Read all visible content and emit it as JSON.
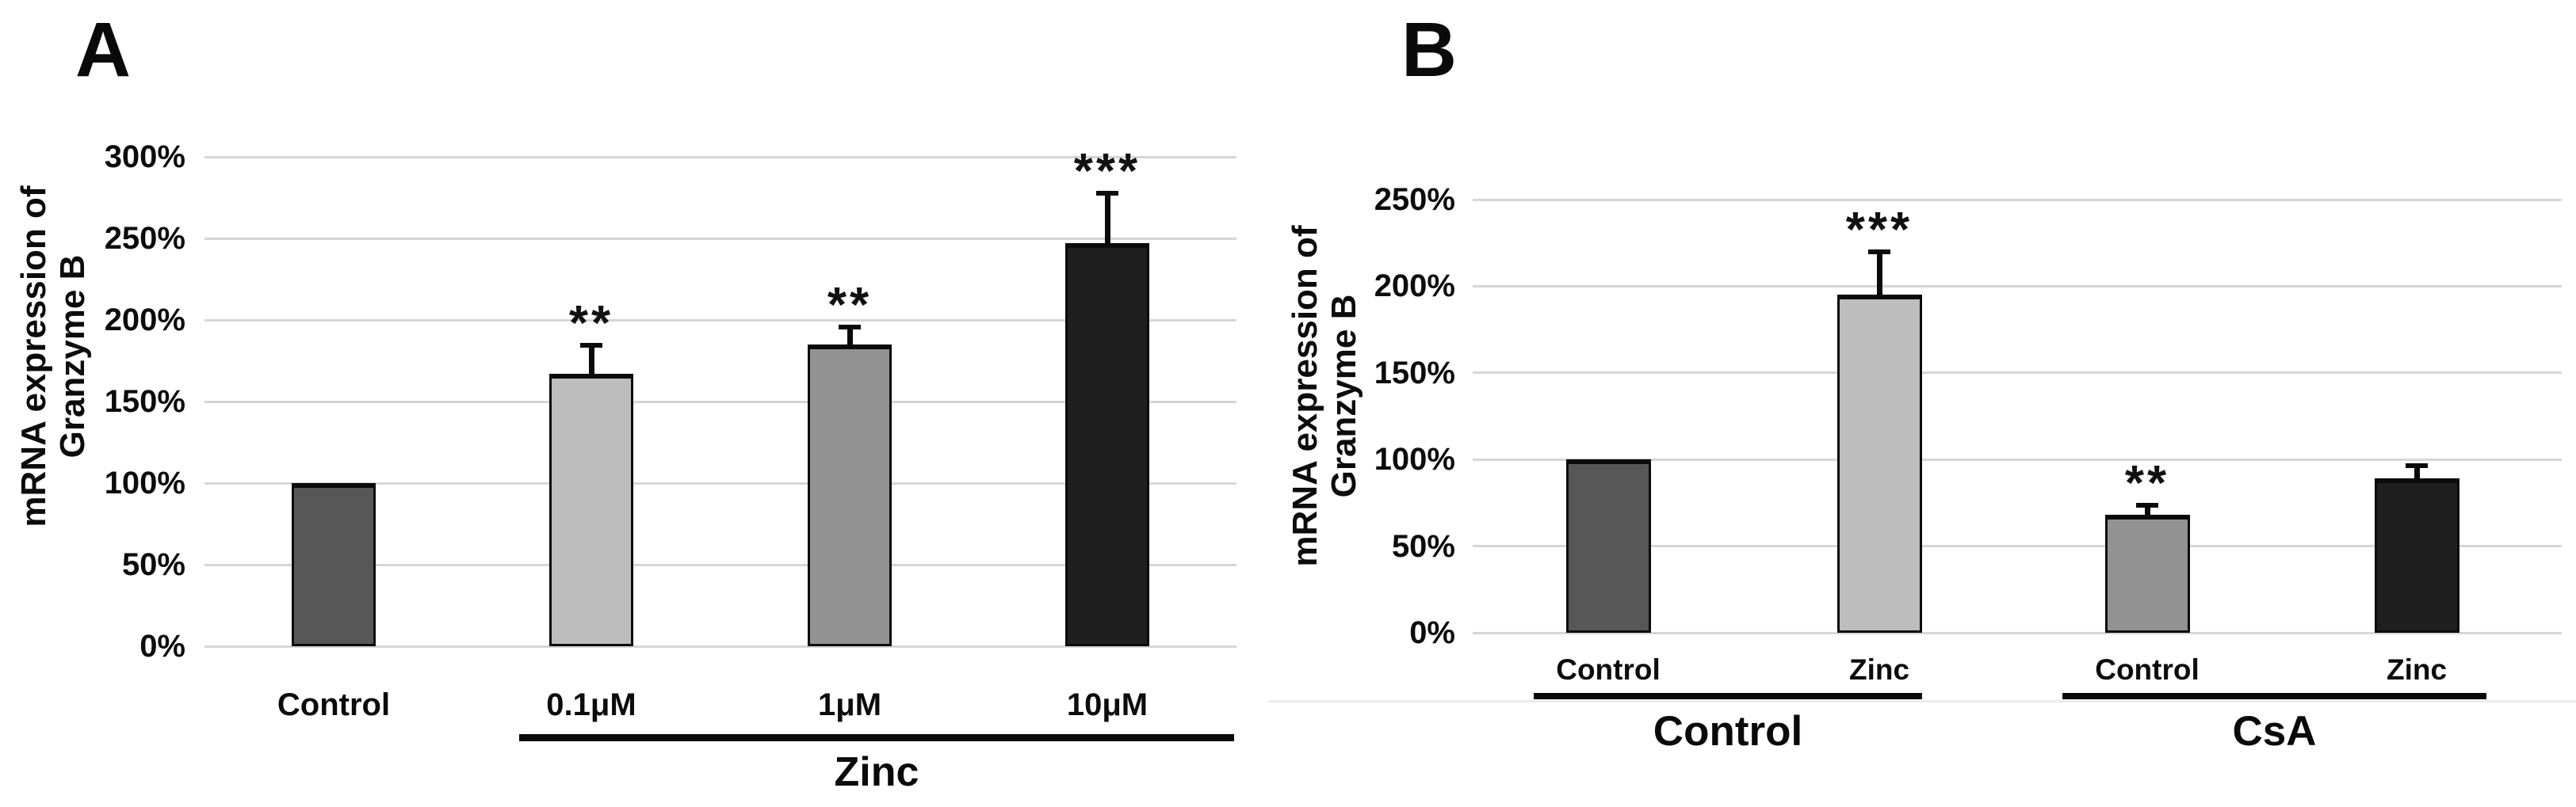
{
  "figure": {
    "background": "#ffffff",
    "text_color": "#101010",
    "gridline_color": "#d6d6d6"
  },
  "chart_data": [
    {
      "type": "bar",
      "panel_letter": "A",
      "ylabel_lines": [
        "mRNA expression of",
        "Granzyme B"
      ],
      "ylim": [
        0,
        300
      ],
      "ytick_step": 50,
      "ytick_labels": [
        "0%",
        "50%",
        "100%",
        "150%",
        "200%",
        "250%",
        "300%"
      ],
      "grid": "horizontal",
      "legend": "none",
      "categories": [
        "Control",
        "0.1μM",
        "1μM",
        "10μM"
      ],
      "values": [
        100,
        167,
        185,
        247
      ],
      "errors_plus": [
        0,
        19,
        12,
        32
      ],
      "significance": [
        "",
        "**",
        "**",
        "***"
      ],
      "bar_colors": [
        "#575757",
        "#bdbdbd",
        "#929292",
        "#1f1f1f"
      ],
      "groups": [
        {
          "label": "Zinc",
          "from_index": 1,
          "to_index": 3
        }
      ]
    },
    {
      "type": "bar",
      "panel_letter": "B",
      "ylabel_lines": [
        "mRNA expression of",
        "Granzyme B"
      ],
      "ylim": [
        0,
        250
      ],
      "ytick_step": 50,
      "ytick_labels": [
        "0%",
        "50%",
        "100%",
        "150%",
        "200%",
        "250%"
      ],
      "grid": "horizontal",
      "legend": "none",
      "categories": [
        "Control",
        "Zinc",
        "Control",
        "Zinc"
      ],
      "values": [
        100,
        195,
        68,
        89
      ],
      "errors_plus": [
        0,
        26,
        7,
        9
      ],
      "significance": [
        "",
        "***",
        "**",
        ""
      ],
      "bar_colors": [
        "#575757",
        "#bdbdbd",
        "#929292",
        "#1f1f1f"
      ],
      "groups": [
        {
          "label": "Control",
          "from_index": 0,
          "to_index": 1
        },
        {
          "label": "CsA",
          "from_index": 2,
          "to_index": 3
        }
      ]
    }
  ]
}
